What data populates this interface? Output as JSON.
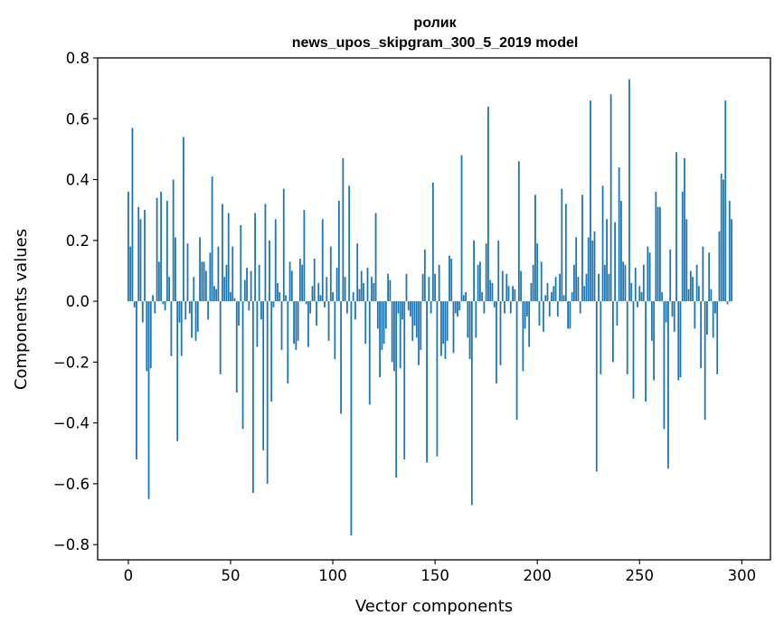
{
  "chart_data": {
    "type": "bar",
    "title_line1": "ролик",
    "title_line2": "news_upos_skipgram_300_5_2019 model",
    "xlabel": "Vector components",
    "ylabel": "Components values",
    "xlim": [
      -15,
      314
    ],
    "ylim": [
      -0.85,
      0.8
    ],
    "xticks": [
      0,
      50,
      100,
      150,
      200,
      250,
      300
    ],
    "yticks": [
      0.8,
      0.6,
      0.4,
      0.2,
      0.0,
      -0.2,
      -0.4,
      -0.6,
      -0.8
    ],
    "ytick_labels": [
      "0.8",
      "0.6",
      "0.4",
      "0.2",
      "0.0",
      "−0.2",
      "−0.4",
      "−0.6",
      "−0.8"
    ],
    "xtick_labels": [
      "0",
      "50",
      "100",
      "150",
      "200",
      "250",
      "300"
    ],
    "bar_color": "#1f77b4",
    "grid": false,
    "legend": "none",
    "values": [
      0.36,
      0.18,
      0.57,
      -0.02,
      -0.52,
      0.31,
      0.27,
      -0.07,
      0.3,
      -0.23,
      -0.65,
      -0.22,
      0.02,
      -0.04,
      0.34,
      0.13,
      0.36,
      -0.01,
      -0.03,
      0.33,
      0.08,
      -0.18,
      0.4,
      0.21,
      -0.46,
      -0.07,
      -0.18,
      0.54,
      -0.06,
      0.19,
      -0.04,
      -0.12,
      0.08,
      -0.13,
      -0.1,
      0.21,
      0.13,
      0.13,
      0.1,
      -0.06,
      0.16,
      0.41,
      0.05,
      0.04,
      0.18,
      -0.24,
      0.32,
      0.08,
      0.12,
      0.29,
      0.03,
      0.18,
      0.01,
      -0.3,
      -0.08,
      0.25,
      -0.42,
      0.07,
      0.11,
      -0.03,
      0.1,
      -0.63,
      0.29,
      -0.15,
      0.12,
      -0.06,
      -0.49,
      0.32,
      -0.6,
      0.2,
      -0.33,
      -0.02,
      0.27,
      0.06,
      0.03,
      -0.16,
      0.37,
      0.02,
      -0.27,
      0.13,
      0.1,
      -0.14,
      -0.16,
      -0.13,
      0.14,
      0.12,
      0.3,
      -0.01,
      -0.15,
      -0.04,
      0.05,
      0.14,
      -0.08,
      0.06,
      0.02,
      0.27,
      -0.02,
      0.08,
      -0.13,
      0.18,
      0.03,
      -0.19,
      0.11,
      0.33,
      -0.37,
      0.47,
      0.08,
      -0.04,
      0.38,
      -0.77,
      0.03,
      -0.06,
      0.19,
      0.04,
      0.1,
      0.06,
      -0.14,
      0.11,
      -0.34,
      0.08,
      0.06,
      0.29,
      -0.09,
      -0.25,
      -0.16,
      -0.14,
      -0.09,
      0.09,
      0.07,
      -0.2,
      -0.23,
      -0.58,
      -0.04,
      -0.22,
      -0.06,
      -0.52,
      0.09,
      -0.03,
      -0.05,
      -0.13,
      -0.08,
      -0.12,
      -0.21,
      -0.16,
      0.09,
      0.17,
      -0.53,
      0.08,
      -0.04,
      0.39,
      0.09,
      -0.51,
      0.12,
      -0.18,
      -0.14,
      -0.19,
      -0.13,
      0.15,
      0.14,
      -0.17,
      -0.04,
      -0.05,
      -0.03,
      0.48,
      0.02,
      0.03,
      -0.12,
      -0.19,
      -0.67,
      0.2,
      -0.12,
      0.12,
      0.13,
      0.03,
      -0.04,
      0.19,
      0.64,
      0.07,
      0.06,
      -0.02,
      -0.27,
      0.2,
      -0.21,
      0.1,
      -0.04,
      0.09,
      0.05,
      -0.04,
      0.05,
      0.04,
      -0.39,
      0.46,
      0.1,
      -0.23,
      -0.09,
      -0.05,
      -0.15,
      0.06,
      0.12,
      0.35,
      0.19,
      -0.08,
      0.13,
      -0.1,
      0.02,
      0.06,
      -0.05,
      0.03,
      0.05,
      0.08,
      -0.05,
      0.09,
      0.37,
      0.02,
      0.32,
      -0.09,
      -0.09,
      0.03,
      0.12,
      0.21,
      0.08,
      -0.04,
      0.35,
      0.05,
      0.09,
      0.21,
      0.66,
      0.2,
      0.23,
      -0.56,
      0.09,
      -0.24,
      0.38,
      0.12,
      0.27,
      0.09,
      0.68,
      -0.2,
      0.26,
      -0.08,
      0.44,
      0.33,
      0.13,
      0.12,
      -0.24,
      0.73,
      0.06,
      -0.32,
      0.11,
      -0.02,
      0.05,
      0.03,
      0.12,
      -0.33,
      0.18,
      0.16,
      -0.13,
      -0.26,
      0.36,
      0.31,
      0.31,
      0.03,
      -0.42,
      -0.07,
      -0.55,
      0.17,
      -0.05,
      -0.1,
      0.49,
      -0.26,
      -0.25,
      0.36,
      0.47,
      0.27,
      0.04,
      0.1,
      0.08,
      -0.09,
      0.12,
      0.05,
      -0.22,
      0.18,
      -0.39,
      -0.11,
      0.16,
      0.04,
      -0.12,
      -0.04,
      -0.24,
      0.23,
      0.42,
      0.4,
      0.66,
      -0.01,
      0.33,
      0.27
    ]
  }
}
